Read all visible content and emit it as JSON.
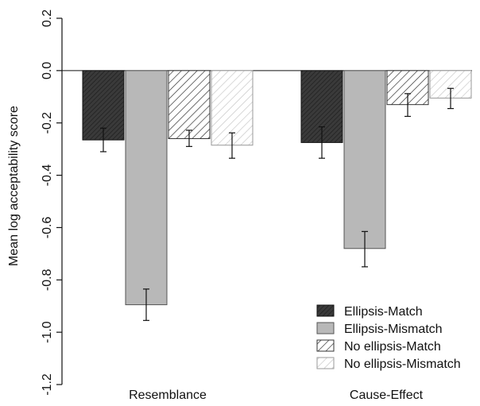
{
  "chart_data": {
    "type": "bar",
    "categories": [
      "Resemblance",
      "Cause-Effect"
    ],
    "ylabel": "Mean log acceptability score",
    "ylim": [
      -1.2,
      0.2
    ],
    "yticks": [
      "0.2",
      "0.0",
      "-0.2",
      "-0.4",
      "-0.6",
      "-0.8",
      "-1.0",
      "-1.2"
    ],
    "ytick_values": [
      0.2,
      0.0,
      -0.2,
      -0.4,
      -0.6,
      -0.8,
      -1.0,
      -1.2
    ],
    "reference_line": 0.0,
    "grid": false,
    "legend_position": "bottom-right",
    "series": [
      {
        "name": "Ellipsis-Match",
        "fill": "dark",
        "values": [
          -0.265,
          -0.275
        ],
        "error_low": [
          -0.31,
          -0.335
        ],
        "error_high": [
          -0.22,
          -0.215
        ]
      },
      {
        "name": "Ellipsis-Mismatch",
        "fill": "gray",
        "values": [
          -0.895,
          -0.68
        ],
        "error_low": [
          -0.955,
          -0.75
        ],
        "error_high": [
          -0.835,
          -0.615
        ]
      },
      {
        "name": "No ellipsis-Match",
        "fill": "dense-hatch",
        "values": [
          -0.26,
          -0.13
        ],
        "error_low": [
          -0.29,
          -0.175
        ],
        "error_high": [
          -0.228,
          -0.088
        ]
      },
      {
        "name": "No ellipsis-Mismatch",
        "fill": "light-hatch",
        "values": [
          -0.285,
          -0.105
        ],
        "error_low": [
          -0.335,
          -0.145
        ],
        "error_high": [
          -0.238,
          -0.068
        ]
      }
    ],
    "colors": {
      "dark": "#3a3a3a",
      "gray": "#b8b8b8",
      "hatch_line": "#333333",
      "light_hatch_line": "#c0c0c0"
    }
  }
}
